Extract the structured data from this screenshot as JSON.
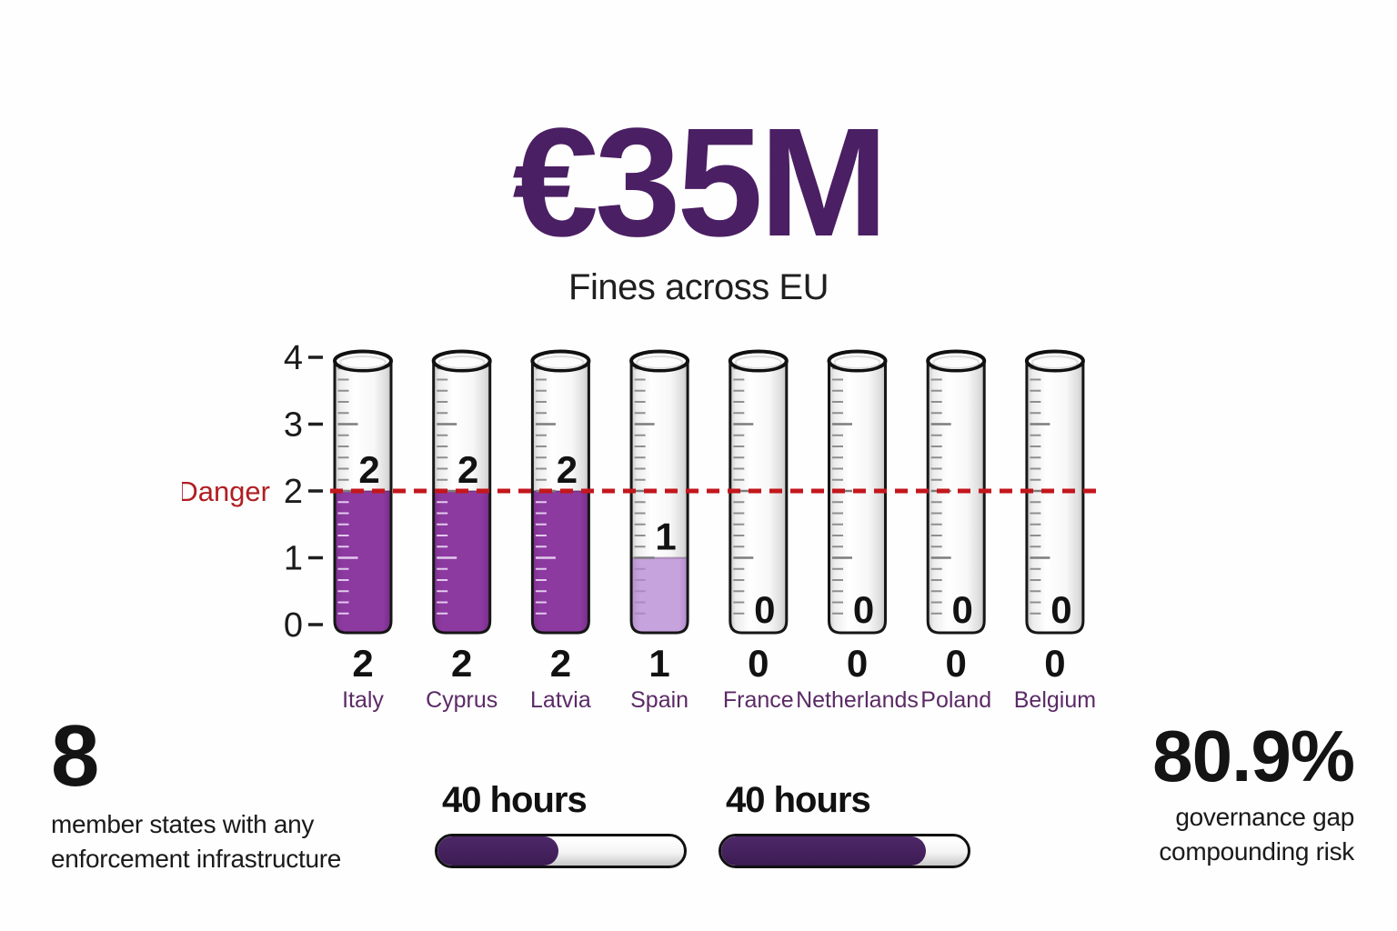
{
  "header": {
    "headline": "€35M",
    "subtitle": "Fines across EU"
  },
  "chart_data": {
    "type": "bar",
    "title": "€35M",
    "subtitle": "Fines across EU",
    "categories": [
      "Italy",
      "Cyprus",
      "Latvia",
      "Spain",
      "France",
      "Netherlands",
      "Poland",
      "Belgium"
    ],
    "values": [
      2,
      2,
      2,
      1,
      0,
      0,
      0,
      0
    ],
    "value_labels": [
      "2",
      "2",
      "2",
      "1",
      "0",
      "0",
      "0",
      "0"
    ],
    "ylim": [
      0,
      4
    ],
    "yticks": [
      4,
      3,
      2,
      1,
      0
    ],
    "threshold": {
      "label": "Danger",
      "value": 2,
      "color": "#c3161c",
      "label_color": "#b01e23"
    },
    "bar_colors": [
      "#8c3aa0",
      "#8c3aa0",
      "#8c3aa0",
      "#c6a3dc",
      null,
      null,
      null,
      null
    ],
    "grid": false,
    "legend": null,
    "xlabel": "",
    "ylabel": ""
  },
  "stats": {
    "left": {
      "value": "8",
      "lines": [
        "member states with any",
        "enforcement infrastructure"
      ]
    },
    "right": {
      "value": "80.9%",
      "lines": [
        "governance gap",
        "compounding risk"
      ]
    }
  },
  "progress_bars": [
    {
      "label": "40 hours",
      "percent": 49
    },
    {
      "label": "40 hours",
      "percent": 83
    }
  ],
  "colors": {
    "headline": "#4b1f63",
    "country_label": "#5b2a66",
    "axis_text": "#1b1b1b",
    "value_text": "#121212",
    "bar_fill_dark": "#8c3aa0",
    "bar_fill_light": "#c6a3dc",
    "progress_fill": "#44215d",
    "danger_line": "#c3161c",
    "danger_label": "#b01e23"
  }
}
